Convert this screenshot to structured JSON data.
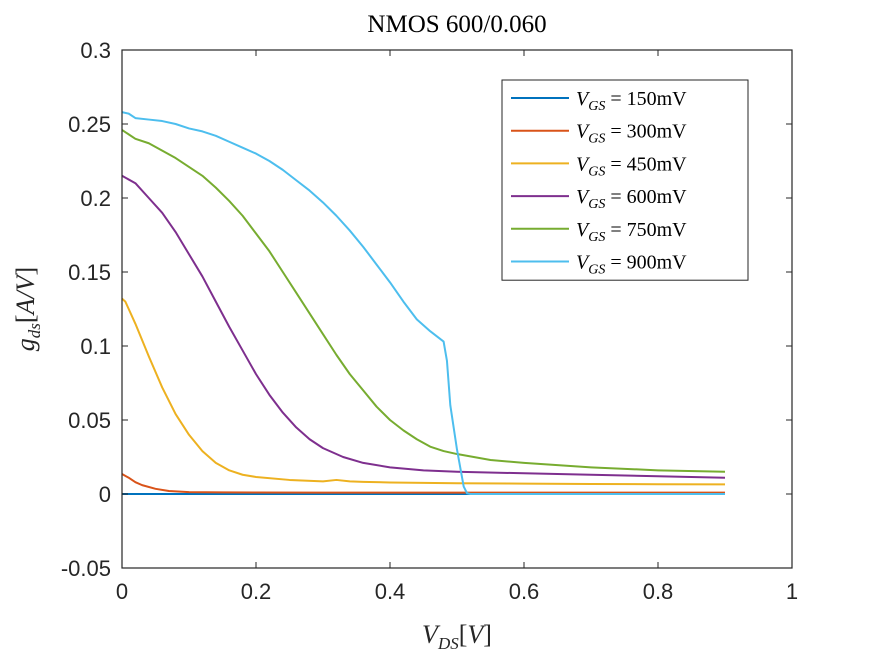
{
  "chart_data": {
    "type": "line",
    "title": "NMOS 600/0.060",
    "xlabel": "V_DS[V]",
    "ylabel": "g_ds[A/V]",
    "xlim": [
      0,
      1
    ],
    "ylim": [
      -0.05,
      0.3
    ],
    "xticks": [
      "0",
      "0.2",
      "0.4",
      "0.6",
      "0.8",
      "1"
    ],
    "yticks": [
      "-0.05",
      "0",
      "0.05",
      "0.1",
      "0.15",
      "0.2",
      "0.25",
      "0.3"
    ],
    "grid": false,
    "legend_position": "top-right",
    "series": [
      {
        "name": "V_GS = 150mV",
        "label_var": "V",
        "label_sub": "GS",
        "label_val": " = 150mV",
        "color": "#0072BD",
        "x": [
          0,
          0.1,
          0.2,
          0.3,
          0.4,
          0.5,
          0.6,
          0.7,
          0.8,
          0.9
        ],
        "y": [
          0.0,
          0.0,
          0.0,
          0.0,
          0.0,
          0.0,
          0.0,
          0.0,
          0.0,
          0.0
        ]
      },
      {
        "name": "V_GS = 300mV",
        "label_var": "V",
        "label_sub": "GS",
        "label_val": " = 300mV",
        "color": "#D95319",
        "x": [
          0,
          0.01,
          0.02,
          0.03,
          0.05,
          0.07,
          0.1,
          0.15,
          0.2,
          0.3,
          0.4,
          0.5,
          0.6,
          0.7,
          0.8,
          0.9
        ],
        "y": [
          0.0135,
          0.011,
          0.008,
          0.006,
          0.0035,
          0.002,
          0.0013,
          0.0011,
          0.001,
          0.0009,
          0.0009,
          0.0009,
          0.0009,
          0.0009,
          0.0009,
          0.0009
        ]
      },
      {
        "name": "V_GS = 450mV",
        "label_var": "V",
        "label_sub": "GS",
        "label_val": " = 450mV",
        "color": "#EDB120",
        "x": [
          0,
          0.005,
          0.02,
          0.04,
          0.06,
          0.08,
          0.1,
          0.12,
          0.14,
          0.16,
          0.18,
          0.2,
          0.25,
          0.3,
          0.32,
          0.34,
          0.36,
          0.4,
          0.5,
          0.6,
          0.7,
          0.8,
          0.9
        ],
        "y": [
          0.132,
          0.13,
          0.115,
          0.093,
          0.072,
          0.054,
          0.04,
          0.029,
          0.021,
          0.016,
          0.013,
          0.0115,
          0.0095,
          0.0085,
          0.0095,
          0.0085,
          0.0082,
          0.0078,
          0.0073,
          0.007,
          0.0068,
          0.0066,
          0.0065
        ]
      },
      {
        "name": "V_GS = 600mV",
        "label_var": "V",
        "label_sub": "GS",
        "label_val": " = 600mV",
        "color": "#7E2F8E",
        "x": [
          0,
          0.02,
          0.04,
          0.06,
          0.08,
          0.1,
          0.12,
          0.14,
          0.16,
          0.18,
          0.2,
          0.22,
          0.24,
          0.26,
          0.28,
          0.3,
          0.33,
          0.36,
          0.4,
          0.45,
          0.5,
          0.6,
          0.7,
          0.8,
          0.9
        ],
        "y": [
          0.215,
          0.21,
          0.2,
          0.19,
          0.177,
          0.162,
          0.147,
          0.13,
          0.113,
          0.097,
          0.081,
          0.067,
          0.055,
          0.045,
          0.037,
          0.031,
          0.025,
          0.021,
          0.018,
          0.016,
          0.015,
          0.014,
          0.013,
          0.012,
          0.011
        ]
      },
      {
        "name": "V_GS = 750mV",
        "label_var": "V",
        "label_sub": "GS",
        "label_val": " = 750mV",
        "color": "#77AC30",
        "x": [
          0,
          0.01,
          0.02,
          0.04,
          0.06,
          0.08,
          0.1,
          0.12,
          0.14,
          0.16,
          0.18,
          0.2,
          0.22,
          0.24,
          0.26,
          0.28,
          0.3,
          0.32,
          0.34,
          0.36,
          0.38,
          0.4,
          0.42,
          0.44,
          0.46,
          0.48,
          0.5,
          0.55,
          0.6,
          0.7,
          0.8,
          0.9
        ],
        "y": [
          0.246,
          0.243,
          0.24,
          0.237,
          0.232,
          0.227,
          0.221,
          0.215,
          0.207,
          0.198,
          0.188,
          0.176,
          0.164,
          0.15,
          0.136,
          0.122,
          0.108,
          0.094,
          0.081,
          0.07,
          0.059,
          0.05,
          0.043,
          0.037,
          0.032,
          0.029,
          0.027,
          0.023,
          0.021,
          0.018,
          0.016,
          0.015
        ]
      },
      {
        "name": "V_GS = 900mV",
        "label_var": "V",
        "label_sub": "GS",
        "label_val": " = 900mV",
        "color": "#4DBEEE",
        "x": [
          0,
          0.01,
          0.02,
          0.04,
          0.06,
          0.08,
          0.1,
          0.12,
          0.14,
          0.16,
          0.18,
          0.2,
          0.22,
          0.24,
          0.26,
          0.28,
          0.3,
          0.32,
          0.34,
          0.36,
          0.38,
          0.4,
          0.42,
          0.44,
          0.46,
          0.48,
          0.485,
          0.49,
          0.5,
          0.51,
          0.515,
          0.52,
          0.6,
          0.7,
          0.8,
          0.9
        ],
        "y": [
          0.258,
          0.257,
          0.254,
          0.253,
          0.252,
          0.25,
          0.247,
          0.245,
          0.242,
          0.238,
          0.234,
          0.23,
          0.225,
          0.219,
          0.212,
          0.205,
          0.197,
          0.188,
          0.178,
          0.167,
          0.155,
          0.143,
          0.13,
          0.118,
          0.11,
          0.103,
          0.09,
          0.06,
          0.03,
          0.005,
          0.0005,
          0.0,
          0.0,
          0.0,
          0.0,
          0.0
        ]
      }
    ]
  }
}
